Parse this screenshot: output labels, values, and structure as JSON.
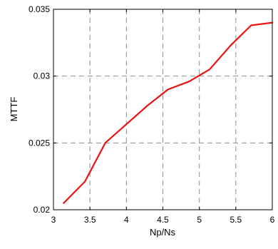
{
  "chart_data": {
    "type": "line",
    "title": "",
    "xlabel": "Np/Ns",
    "ylabel": "MTTF",
    "xlim": [
      3,
      6
    ],
    "ylim": [
      0.02,
      0.035
    ],
    "x_ticks": [
      3,
      3.5,
      4,
      4.5,
      5,
      5.5,
      6
    ],
    "x_tick_labels": [
      "3",
      "3.5",
      "4",
      "4.5",
      "5",
      "5.5",
      "6"
    ],
    "y_ticks": [
      0.02,
      0.025,
      0.03,
      0.035
    ],
    "y_tick_labels": [
      "0.02",
      "0.025",
      "0.03",
      "0.035"
    ],
    "grid": true,
    "grid_style": "dashed",
    "legend": "none",
    "series": [
      {
        "color": "#ee1111",
        "x": [
          3.14,
          3.43,
          3.71,
          4.0,
          4.29,
          4.57,
          4.86,
          5.14,
          5.43,
          5.71,
          6.0
        ],
        "y": [
          0.0205,
          0.0221,
          0.025,
          0.0264,
          0.0278,
          0.029,
          0.0296,
          0.0305,
          0.0323,
          0.0338,
          0.034
        ]
      }
    ]
  }
}
